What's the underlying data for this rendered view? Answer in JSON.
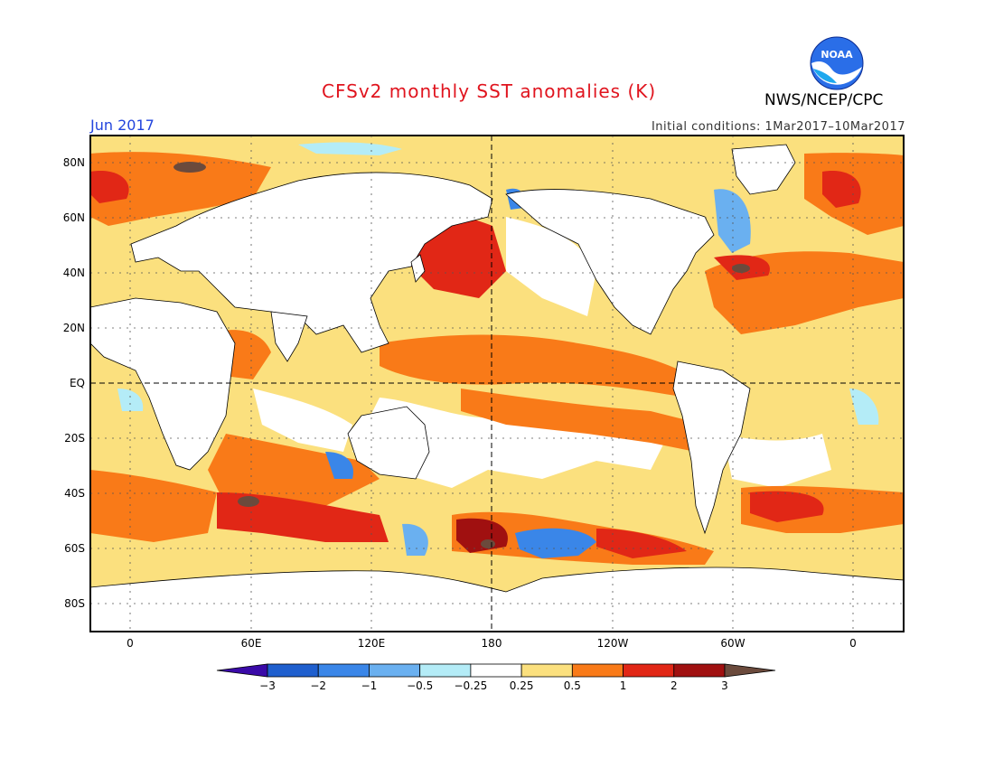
{
  "title": "CFSv2 monthly SST anomalies (K)",
  "month": "Jun 2017",
  "initial_conditions": "Initial conditions: 1Mar2017–10Mar2017",
  "agency": "NWS/NCEP/CPC",
  "logo_text": "NOAA",
  "lat_labels": [
    "80N",
    "60N",
    "40N",
    "20N",
    "EQ",
    "20S",
    "40S",
    "60S",
    "80S"
  ],
  "lon_labels": [
    "0",
    "60E",
    "120E",
    "180",
    "120W",
    "60W",
    "0"
  ],
  "colorbar": {
    "labels": [
      "−3",
      "−2",
      "−1",
      "−0.5",
      "−0.25",
      "0.25",
      "0.5",
      "1",
      "2",
      "3"
    ],
    "colors": [
      "#3a0aa8",
      "#1f5fce",
      "#3a86e8",
      "#6ab0f0",
      "#b4ecf7",
      "#ffffff",
      "#fbe07e",
      "#f97a18",
      "#e12716",
      "#a01010",
      "#6b4a3c"
    ]
  },
  "colors": {
    "title": "#e0141e",
    "month": "#2244dd",
    "land": "#ffffff",
    "coast": "#000000"
  }
}
